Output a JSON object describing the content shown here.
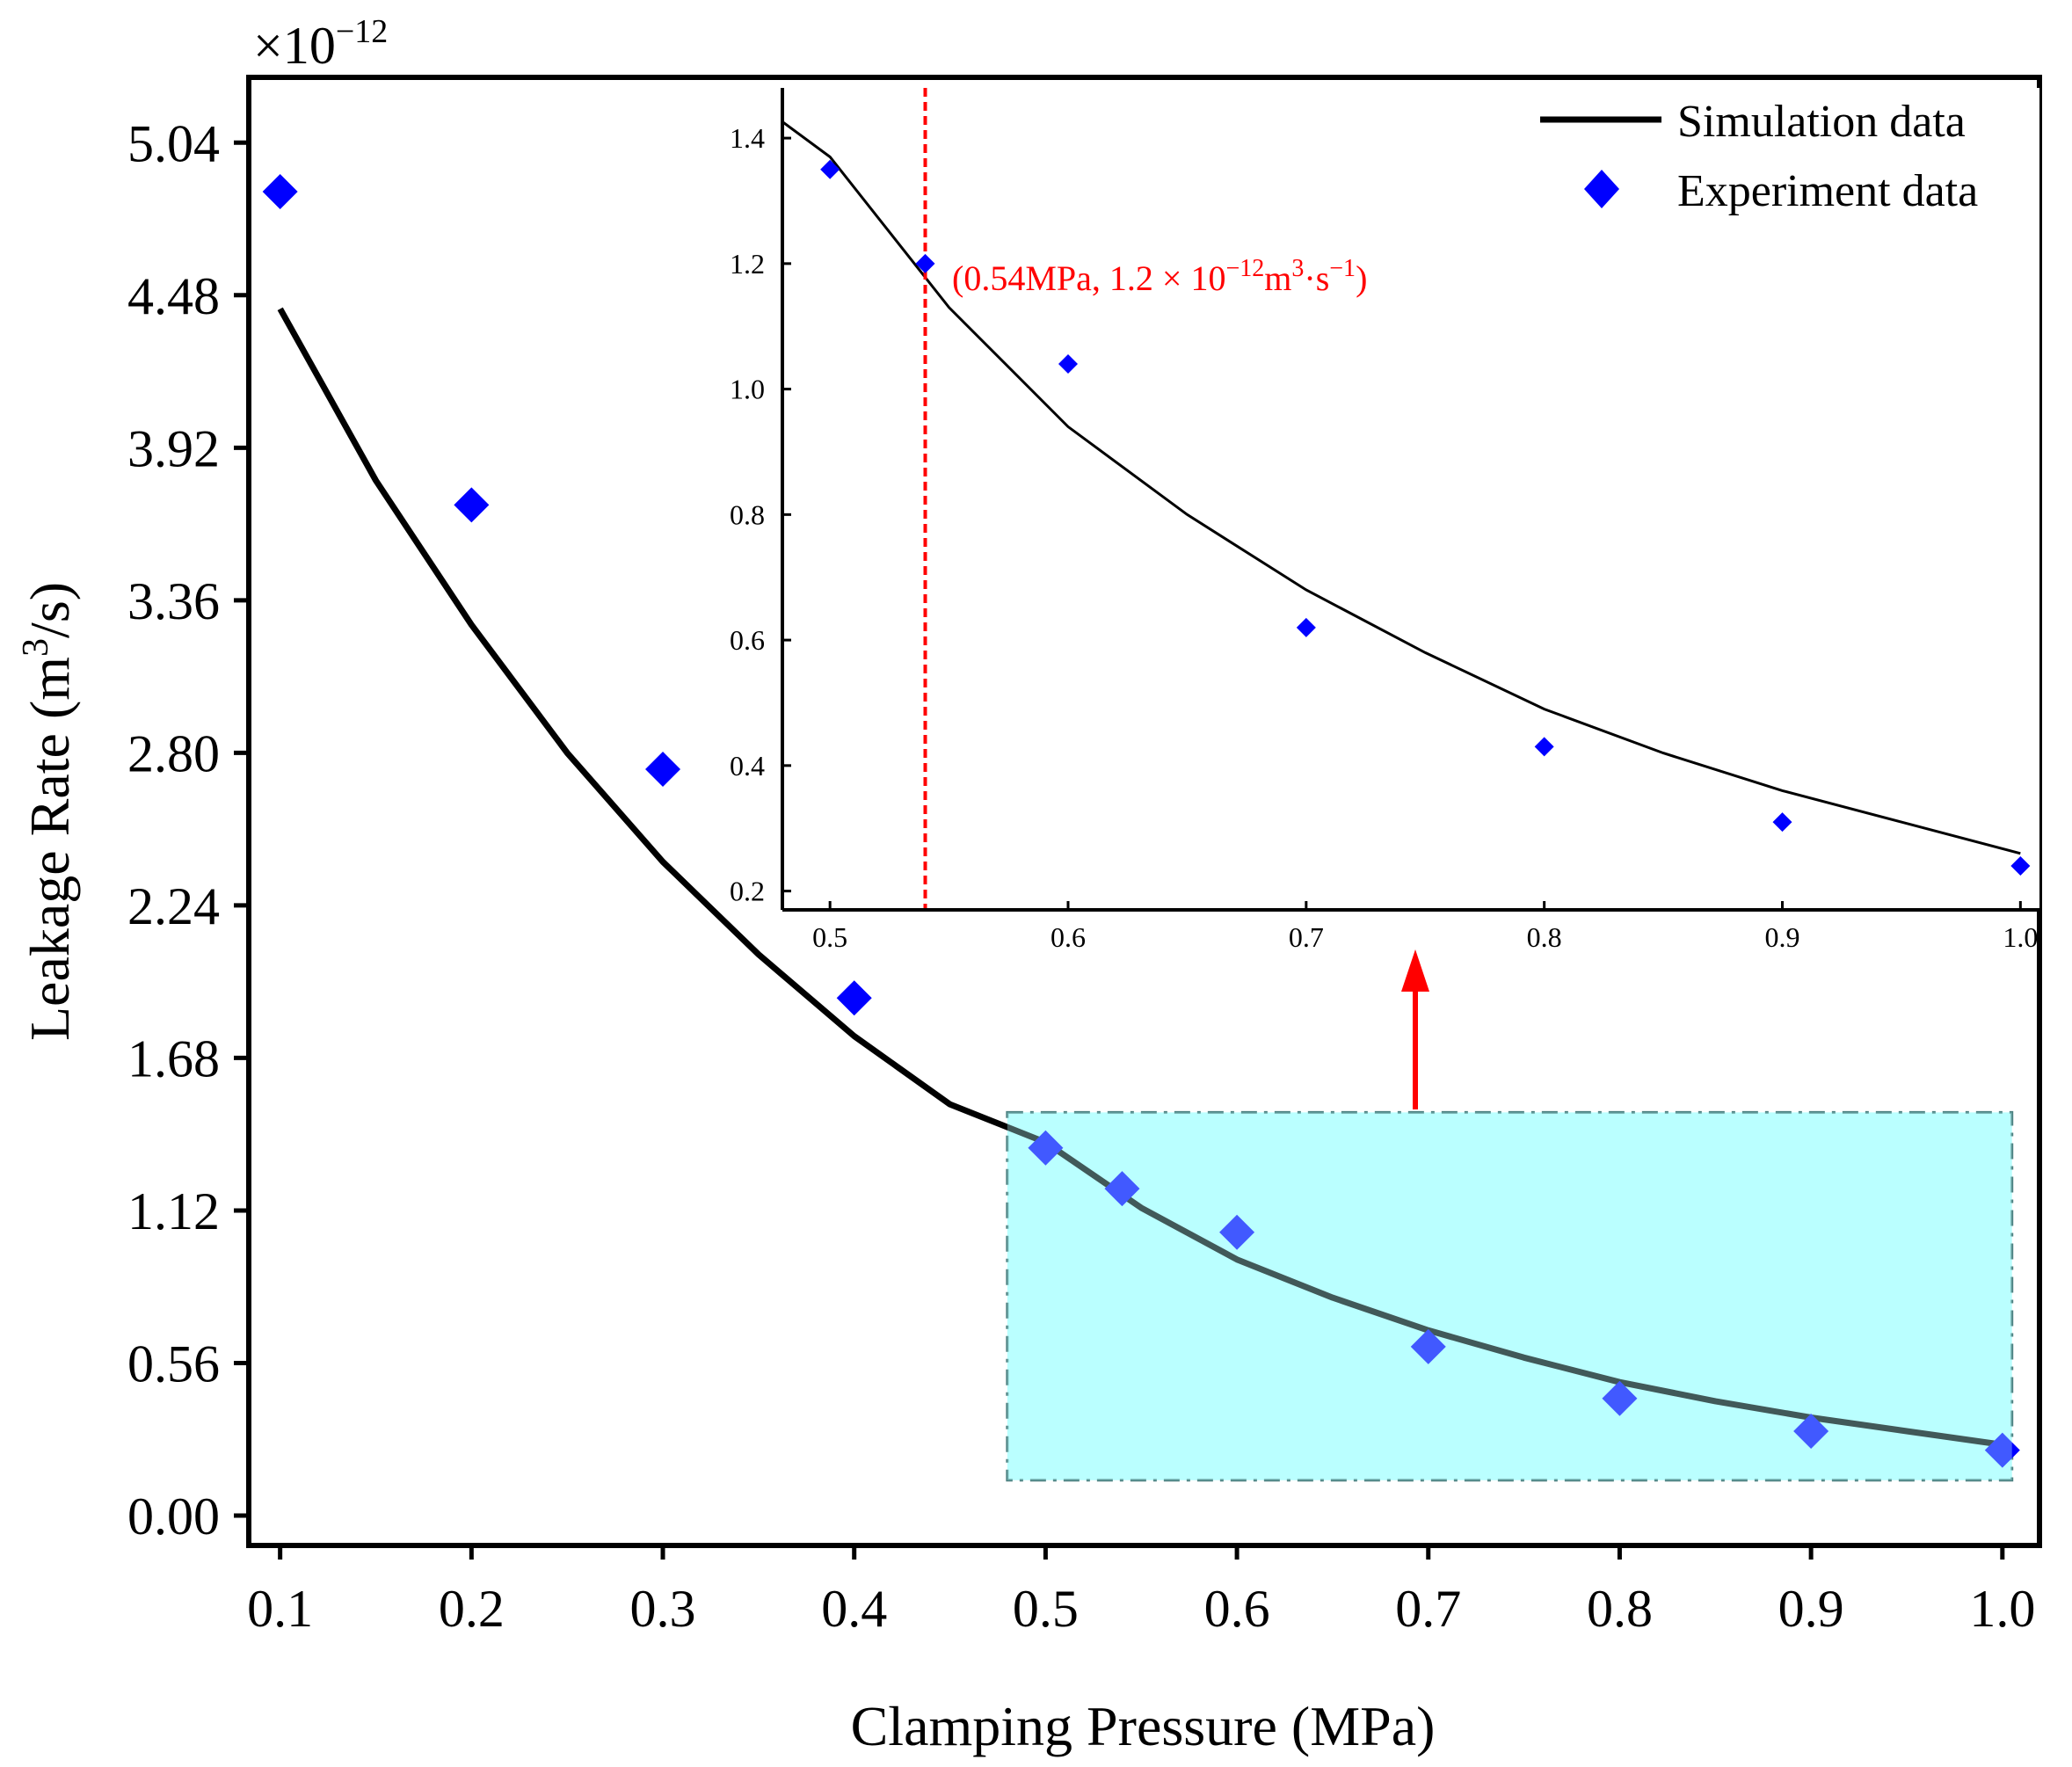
{
  "chart_data": {
    "type": "scatter",
    "title": "",
    "xlabel": "Clamping Pressure (MPa)",
    "ylabel": "Leakage Rate (m³/s)",
    "ylabel_parts": {
      "prefix": "Leakage Rate (m",
      "sup": "3",
      "suffix": "/s)"
    },
    "y_multiplier": {
      "base": "×10",
      "exp": "−12"
    },
    "xlim": [
      0.085,
      1.018
    ],
    "ylim": [
      -0.1,
      5.27
    ],
    "x_ticks": [
      "0.1",
      "0.2",
      "0.3",
      "0.4",
      "0.5",
      "0.6",
      "0.7",
      "0.8",
      "0.9",
      "1.0"
    ],
    "y_ticks": [
      "0.00",
      "0.56",
      "1.12",
      "1.68",
      "2.24",
      "2.80",
      "3.36",
      "3.92",
      "4.48",
      "5.04"
    ],
    "series": [
      {
        "name": "Simulation data",
        "kind": "line",
        "color": "#000000",
        "x": [
          0.1,
          0.15,
          0.2,
          0.25,
          0.3,
          0.35,
          0.4,
          0.45,
          0.5,
          0.55,
          0.6,
          0.65,
          0.7,
          0.75,
          0.8,
          0.85,
          0.9,
          0.95,
          1.0
        ],
        "y": [
          4.43,
          3.8,
          3.27,
          2.8,
          2.4,
          2.06,
          1.76,
          1.51,
          1.37,
          1.13,
          0.94,
          0.8,
          0.68,
          0.58,
          0.49,
          0.42,
          0.36,
          0.31,
          0.26
        ]
      },
      {
        "name": "Experiment data",
        "kind": "scatter",
        "marker": "diamond",
        "color": "#0000ff",
        "x": [
          0.1,
          0.2,
          0.3,
          0.4,
          0.5,
          0.54,
          0.6,
          0.7,
          0.8,
          0.9,
          1.0
        ],
        "y": [
          4.86,
          3.71,
          2.74,
          1.9,
          1.35,
          1.2,
          1.04,
          0.62,
          0.43,
          0.31,
          0.24
        ]
      }
    ],
    "legend": {
      "position": "top-right",
      "entries": [
        "Simulation data",
        "Experiment data"
      ]
    },
    "highlight_region": {
      "x_range": [
        0.48,
        1.005
      ],
      "y_range": [
        0.13,
        1.48
      ],
      "fill": "#bbffff",
      "border": "#4a7f7f"
    },
    "inset": {
      "xlim": [
        0.48,
        1.008
      ],
      "ylim": [
        0.17,
        1.48
      ],
      "x_ticks": [
        "0.5",
        "0.6",
        "0.7",
        "0.8",
        "0.9",
        "1.0"
      ],
      "y_ticks": [
        "0.2",
        "0.4",
        "0.6",
        "0.8",
        "1.0",
        "1.2",
        "1.4"
      ],
      "reference_x": 0.54,
      "reference_color": "#ff0000",
      "annotation": {
        "prefix": "(0.54MPa, 1.2 × 10",
        "exp1": "−12",
        "mid": "m",
        "exp2": "3",
        "mid2": "·s",
        "exp3": "−1",
        "suffix": ")"
      }
    }
  }
}
